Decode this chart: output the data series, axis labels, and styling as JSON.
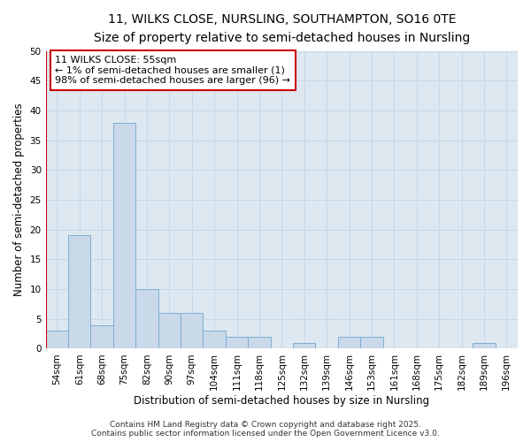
{
  "title_line1": "11, WILKS CLOSE, NURSLING, SOUTHAMPTON, SO16 0TE",
  "title_line2": "Size of property relative to semi-detached houses in Nursling",
  "xlabel": "Distribution of semi-detached houses by size in Nursling",
  "ylabel": "Number of semi-detached properties",
  "categories": [
    "54sqm",
    "61sqm",
    "68sqm",
    "75sqm",
    "82sqm",
    "90sqm",
    "97sqm",
    "104sqm",
    "111sqm",
    "118sqm",
    "125sqm",
    "132sqm",
    "139sqm",
    "146sqm",
    "153sqm",
    "161sqm",
    "168sqm",
    "175sqm",
    "182sqm",
    "189sqm",
    "196sqm"
  ],
  "values": [
    3,
    19,
    4,
    38,
    10,
    6,
    6,
    3,
    2,
    2,
    0,
    1,
    0,
    2,
    2,
    0,
    0,
    0,
    0,
    1,
    0
  ],
  "bar_color": "#c9d9ea",
  "bar_edge_color": "#7dadd4",
  "annotation_text": "11 WILKS CLOSE: 55sqm\n← 1% of semi-detached houses are smaller (1)\n98% of semi-detached houses are larger (96) →",
  "annotation_box_facecolor": "#ffffff",
  "annotation_box_edgecolor": "#cc0000",
  "red_line_color": "#cc0000",
  "ylim": [
    0,
    50
  ],
  "yticks": [
    0,
    5,
    10,
    15,
    20,
    25,
    30,
    35,
    40,
    45,
    50
  ],
  "grid_color": "#c8d8e8",
  "background_color": "#dde8f0",
  "title_fontsize": 10,
  "subtitle_fontsize": 9,
  "axis_label_fontsize": 8.5,
  "tick_fontsize": 7.5,
  "annotation_fontsize": 8,
  "footer_fontsize": 6.5,
  "footer_text": "Contains HM Land Registry data © Crown copyright and database right 2025.\nContains public sector information licensed under the Open Government Licence v3.0."
}
